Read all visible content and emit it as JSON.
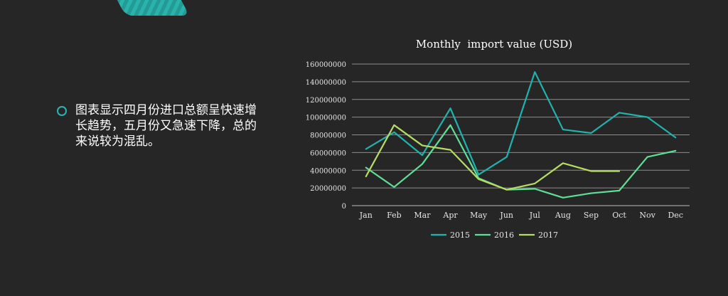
{
  "colors": {
    "background": "#262626",
    "accent": "#2bb5b0",
    "s2015": "#1fb3ad",
    "s2016": "#5ddf96",
    "s2017": "#b7dc63"
  },
  "text": {
    "description": "图表显示四月份进口总额呈快速增长趋势，五月份又急速下降，总的来说较为混乱。"
  },
  "chart_data": {
    "type": "line",
    "title": "Monthly  import value (USD)",
    "xlabel": "",
    "ylabel": "",
    "categories": [
      "Jan",
      "Feb",
      "Mar",
      "Apr",
      "May",
      "Jun",
      "Jul",
      "Aug",
      "Sep",
      "Oct",
      "Nov",
      "Dec"
    ],
    "y_ticks": [
      "0",
      "20000000",
      "40000000",
      "60000000",
      "80000000",
      "100000000",
      "120000000",
      "140000000",
      "160000000"
    ],
    "ylim": [
      0,
      160000000
    ],
    "grid": true,
    "legend_position": "bottom",
    "series": [
      {
        "name": "2015",
        "color": "#1fb3ad",
        "values": [
          64000000,
          83000000,
          57000000,
          110000000,
          35000000,
          55000000,
          151000000,
          86000000,
          82000000,
          105000000,
          100000000,
          77000000
        ]
      },
      {
        "name": "2016",
        "color": "#5ddf96",
        "values": [
          43000000,
          21000000,
          47000000,
          91000000,
          31000000,
          18000000,
          19000000,
          9000000,
          14000000,
          17000000,
          55000000,
          62000000
        ]
      },
      {
        "name": "2017",
        "color": "#b7dc63",
        "values": [
          33000000,
          91000000,
          68000000,
          63000000,
          30000000,
          18000000,
          25000000,
          48000000,
          39000000,
          39000000,
          null,
          null
        ]
      }
    ]
  }
}
